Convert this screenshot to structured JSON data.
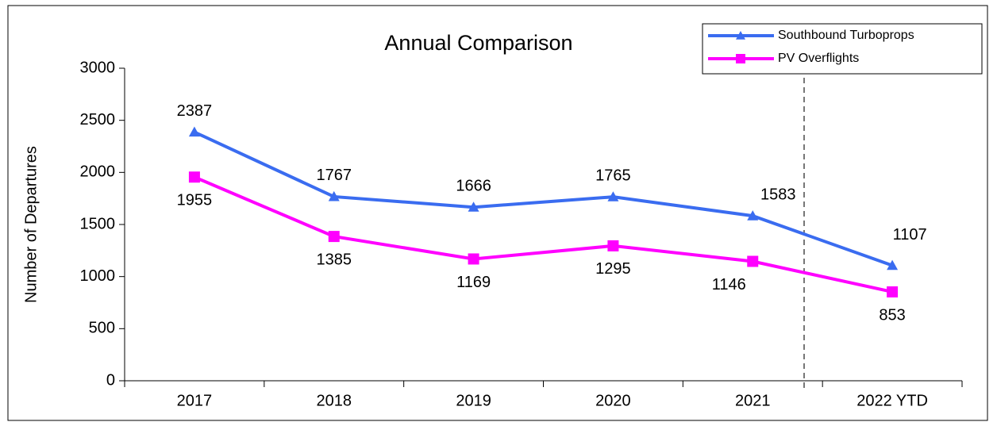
{
  "chart_data": {
    "type": "line",
    "title": "Annual Comparison",
    "ylabel": "Number of Departures",
    "categories": [
      "2017",
      "2018",
      "2019",
      "2020",
      "2021",
      "2022 YTD"
    ],
    "series": [
      {
        "name": "Southbound Turboprops",
        "color": "#3a6cf0",
        "marker": "triangle",
        "values": [
          2387,
          1767,
          1666,
          1765,
          1583,
          1107
        ]
      },
      {
        "name": "PV Overflights",
        "color": "#ff00ff",
        "marker": "square",
        "values": [
          1955,
          1385,
          1169,
          1295,
          1146,
          853
        ]
      }
    ],
    "ylim": [
      0,
      3000
    ],
    "yticks": [
      0,
      500,
      1000,
      1500,
      2000,
      2500,
      3000
    ],
    "grid": false,
    "legend": "top-right"
  }
}
